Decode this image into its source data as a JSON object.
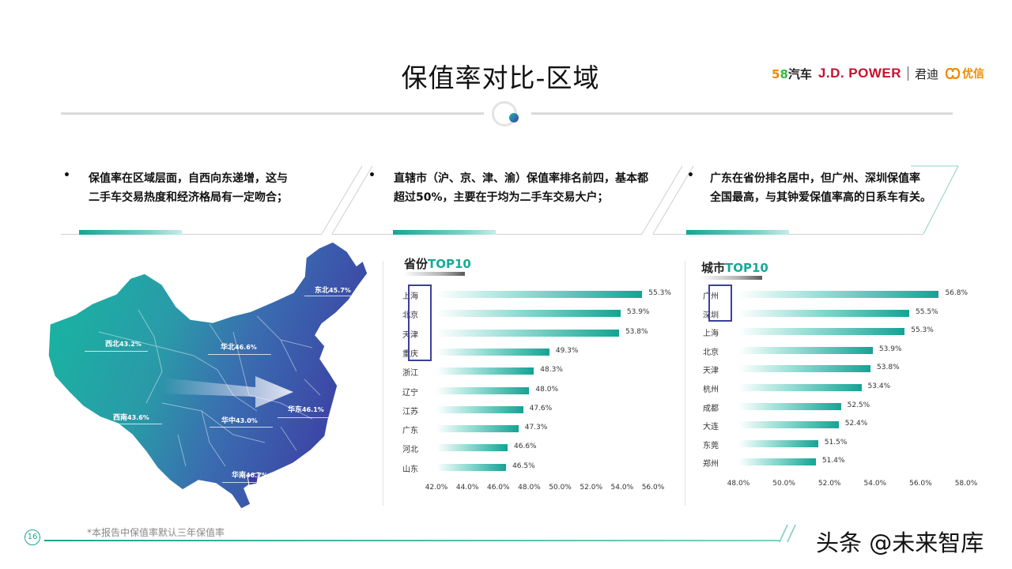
{
  "title": "保值率对比-区域",
  "logos": {
    "brand58_five": "5",
    "brand58_eight": "8",
    "brand58_text": "汽车",
    "jdpower": "J.D. POWER",
    "jundi": "君迪",
    "youxin": "优信"
  },
  "points": [
    {
      "bullet": "•",
      "line1": "保值率在区域层面，自西向东递增，这与",
      "line2": "二手车交易热度和经济格局有一定吻合；"
    },
    {
      "bullet": "•",
      "line1": "直辖市（沪、京、津、渝）保值率排名前四，基本都",
      "line2": "超过50%，主要在于均为二手车交易大户；"
    },
    {
      "bullet": "•",
      "line1": "广东在省份排名居中，但广州、深圳保值率",
      "line2": "全国最高，与其钟爱保值率高的日系车有关。"
    }
  ],
  "map_regions": [
    {
      "name": "东北",
      "value": "45.7%"
    },
    {
      "name": "西北",
      "value": "43.2%"
    },
    {
      "name": "华北",
      "value": "46.6%"
    },
    {
      "name": "西南",
      "value": "43.6%"
    },
    {
      "name": "华中",
      "value": "43.0%"
    },
    {
      "name": "华东",
      "value": "46.1%"
    },
    {
      "name": "华南",
      "value": "46.7%"
    }
  ],
  "chart_data": [
    {
      "type": "bar",
      "orientation": "horizontal",
      "title_main": "省份",
      "title_highlight": "TOP10",
      "categories": [
        "上海",
        "北京",
        "天津",
        "重庆",
        "浙江",
        "辽宁",
        "江苏",
        "广东",
        "河北",
        "山东"
      ],
      "values": [
        55.3,
        53.9,
        53.8,
        49.3,
        48.3,
        48.0,
        47.6,
        47.3,
        46.6,
        46.5
      ],
      "value_labels": [
        "55.3%",
        "53.9%",
        "53.8%",
        "49.3%",
        "48.3%",
        "48.0%",
        "47.6%",
        "47.3%",
        "46.6%",
        "46.5%"
      ],
      "xlim": [
        42,
        56
      ],
      "ticks": [
        42,
        44,
        46,
        48,
        50,
        52,
        54,
        56
      ],
      "tick_labels": [
        "42.0%",
        "44.0%",
        "46.0%",
        "48.0%",
        "50.0%",
        "52.0%",
        "54.0%",
        "56.0%"
      ],
      "highlighted": [
        "上海",
        "北京",
        "天津",
        "重庆"
      ],
      "bar_color": "#14a394",
      "highlight_color": "#3c3f9c",
      "grid": false
    },
    {
      "type": "bar",
      "orientation": "horizontal",
      "title_main": "城市",
      "title_highlight": "TOP10",
      "categories": [
        "广州",
        "深圳",
        "上海",
        "北京",
        "天津",
        "杭州",
        "成都",
        "大连",
        "东莞",
        "郑州"
      ],
      "values": [
        56.8,
        55.5,
        55.3,
        53.9,
        53.8,
        53.4,
        52.5,
        52.4,
        51.5,
        51.4
      ],
      "value_labels": [
        "56.8%",
        "55.5%",
        "55.3%",
        "53.9%",
        "53.8%",
        "53.4%",
        "52.5%",
        "52.4%",
        "51.5%",
        "51.4%"
      ],
      "xlim": [
        48,
        58
      ],
      "ticks": [
        48,
        50,
        52,
        54,
        56,
        58
      ],
      "tick_labels": [
        "48.0%",
        "50.0%",
        "52.0%",
        "54.0%",
        "56.0%",
        "58.0%"
      ],
      "highlighted": [
        "广州",
        "深圳"
      ],
      "bar_color": "#14a394",
      "highlight_color": "#3c3f9c",
      "grid": false
    }
  ],
  "footer": {
    "note": "*本报告中保值率默认三年保值率",
    "page": "16",
    "watermark": "头条 @未来智库"
  }
}
